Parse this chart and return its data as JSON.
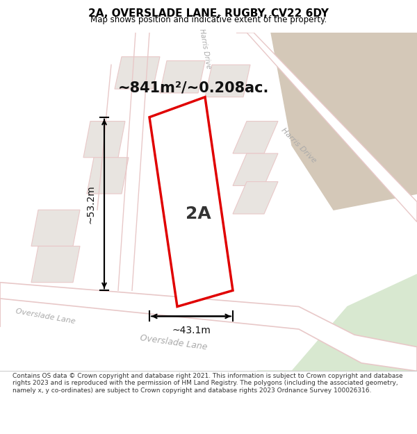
{
  "title": "2A, OVERSLADE LANE, RUGBY, CV22 6DY",
  "subtitle": "Map shows position and indicative extent of the property.",
  "footer": "Contains OS data © Crown copyright and database right 2021. This information is subject to Crown copyright and database rights 2023 and is reproduced with the permission of HM Land Registry. The polygons (including the associated geometry, namely x, y co-ordinates) are subject to Crown copyright and database rights 2023 Ordnance Survey 100026316.",
  "area_label": "~841m²/~0.208ac.",
  "property_label": "2A",
  "dim_width": "~43.1m",
  "dim_height": "~53.2m",
  "road_label_1": "Overslade Lane",
  "road_label_2": "Harris Drive",
  "road_label_3": "Overslade Lane",
  "harris_drive_label": "Harris Drive",
  "bg_color": "#f0ede8",
  "map_bg": "#f0ede8",
  "road_color": "#ffffff",
  "road_edge_color": "#e8c8c8",
  "property_fill": "#ffffff",
  "property_edge": "#e00000",
  "green_area_color": "#d8e8d0",
  "dark_beige": "#d4c8b8",
  "title_color": "#000000",
  "dim_color": "#111111",
  "road_text_color": "#aaaaaa"
}
